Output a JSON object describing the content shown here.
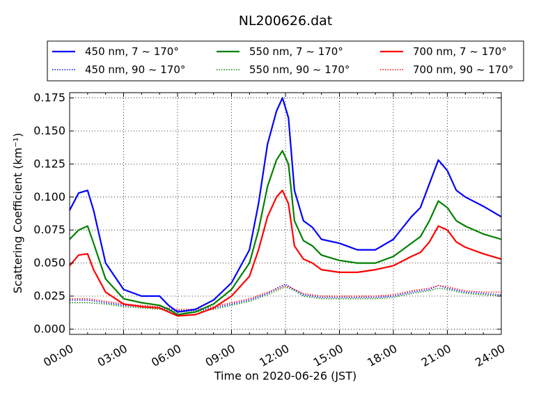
{
  "chart_data": {
    "type": "line",
    "title": "NL200626.dat",
    "xlabel": "Time on 2020-06-26 (JST)",
    "ylabel": "Scattering Coefficient (km⁻¹)",
    "xlim": [
      "00:00",
      "24:00"
    ],
    "ylim": [
      -0.004,
      0.179
    ],
    "xticks": [
      "00:00",
      "03:00",
      "06:00",
      "09:00",
      "12:00",
      "15:00",
      "18:00",
      "21:00",
      "24:00"
    ],
    "yticks": [
      "0.000",
      "0.025",
      "0.050",
      "0.075",
      "0.100",
      "0.125",
      "0.150",
      "0.175"
    ],
    "grid": true,
    "legend_placement": "top, above plot, 3 columns",
    "colors": {
      "blue": "#0000ff",
      "green": "#008000",
      "red": "#ff0000"
    },
    "series": [
      {
        "name": "450 nm, 7 ~ 170°",
        "color": "#0000ff",
        "style": "solid",
        "x": [
          "00:00",
          "00:30",
          "01:00",
          "01:20",
          "02:00",
          "03:00",
          "04:00",
          "05:00",
          "05:30",
          "06:00",
          "07:00",
          "08:00",
          "09:00",
          "10:00",
          "10:30",
          "11:00",
          "11:30",
          "11:50",
          "12:10",
          "12:30",
          "13:00",
          "13:30",
          "14:00",
          "15:00",
          "16:00",
          "17:00",
          "18:00",
          "19:00",
          "19:30",
          "20:00",
          "20:30",
          "21:00",
          "21:30",
          "22:00",
          "23:00",
          "24:00"
        ],
        "y": [
          0.09,
          0.103,
          0.105,
          0.09,
          0.05,
          0.03,
          0.025,
          0.025,
          0.018,
          0.013,
          0.015,
          0.022,
          0.035,
          0.06,
          0.095,
          0.14,
          0.165,
          0.175,
          0.16,
          0.105,
          0.082,
          0.077,
          0.068,
          0.065,
          0.06,
          0.06,
          0.068,
          0.085,
          0.092,
          0.11,
          0.128,
          0.12,
          0.105,
          0.1,
          0.093,
          0.085
        ]
      },
      {
        "name": "550 nm, 7 ~ 170°",
        "color": "#008000",
        "style": "solid",
        "x": [
          "00:00",
          "00:30",
          "01:00",
          "01:20",
          "02:00",
          "03:00",
          "04:00",
          "05:00",
          "05:30",
          "06:00",
          "07:00",
          "08:00",
          "09:00",
          "10:00",
          "10:30",
          "11:00",
          "11:30",
          "11:50",
          "12:10",
          "12:30",
          "13:00",
          "13:30",
          "14:00",
          "15:00",
          "16:00",
          "17:00",
          "18:00",
          "19:00",
          "19:30",
          "20:00",
          "20:30",
          "21:00",
          "21:30",
          "22:00",
          "23:00",
          "24:00"
        ],
        "y": [
          0.068,
          0.075,
          0.078,
          0.065,
          0.038,
          0.023,
          0.02,
          0.018,
          0.015,
          0.011,
          0.013,
          0.019,
          0.03,
          0.05,
          0.075,
          0.108,
          0.128,
          0.135,
          0.125,
          0.082,
          0.067,
          0.063,
          0.056,
          0.052,
          0.05,
          0.05,
          0.055,
          0.065,
          0.07,
          0.082,
          0.097,
          0.092,
          0.082,
          0.078,
          0.072,
          0.068
        ]
      },
      {
        "name": "700 nm, 7 ~ 170°",
        "color": "#ff0000",
        "style": "solid",
        "x": [
          "00:00",
          "00:30",
          "01:00",
          "01:20",
          "02:00",
          "03:00",
          "04:00",
          "05:00",
          "05:30",
          "06:00",
          "07:00",
          "08:00",
          "09:00",
          "10:00",
          "10:30",
          "11:00",
          "11:30",
          "11:50",
          "12:10",
          "12:30",
          "13:00",
          "13:30",
          "14:00",
          "15:00",
          "16:00",
          "17:00",
          "18:00",
          "19:00",
          "19:30",
          "20:00",
          "20:30",
          "21:00",
          "21:30",
          "22:00",
          "23:00",
          "24:00"
        ],
        "y": [
          0.048,
          0.056,
          0.057,
          0.045,
          0.028,
          0.019,
          0.017,
          0.016,
          0.013,
          0.01,
          0.011,
          0.016,
          0.025,
          0.04,
          0.06,
          0.085,
          0.1,
          0.105,
          0.095,
          0.063,
          0.053,
          0.05,
          0.045,
          0.043,
          0.043,
          0.045,
          0.048,
          0.055,
          0.058,
          0.066,
          0.078,
          0.075,
          0.066,
          0.062,
          0.057,
          0.053
        ]
      },
      {
        "name": "450 nm, 90 ~ 170°",
        "color": "#0000ff",
        "style": "dotted",
        "x": [
          "00:00",
          "01:00",
          "02:00",
          "03:00",
          "04:00",
          "05:00",
          "06:00",
          "07:00",
          "08:00",
          "09:00",
          "10:00",
          "11:00",
          "11:30",
          "12:00",
          "12:30",
          "13:00",
          "14:00",
          "15:00",
          "16:00",
          "17:00",
          "18:00",
          "19:00",
          "20:00",
          "20:30",
          "21:00",
          "22:00",
          "23:00",
          "24:00"
        ],
        "y": [
          0.022,
          0.022,
          0.02,
          0.018,
          0.017,
          0.016,
          0.014,
          0.014,
          0.016,
          0.019,
          0.022,
          0.027,
          0.031,
          0.034,
          0.03,
          0.026,
          0.024,
          0.024,
          0.024,
          0.024,
          0.025,
          0.028,
          0.03,
          0.033,
          0.031,
          0.028,
          0.027,
          0.026
        ]
      },
      {
        "name": "550 nm, 90 ~ 170°",
        "color": "#008000",
        "style": "dotted",
        "x": [
          "00:00",
          "01:00",
          "02:00",
          "03:00",
          "04:00",
          "05:00",
          "06:00",
          "07:00",
          "08:00",
          "09:00",
          "10:00",
          "11:00",
          "11:30",
          "12:00",
          "12:30",
          "13:00",
          "14:00",
          "15:00",
          "16:00",
          "17:00",
          "18:00",
          "19:00",
          "20:00",
          "20:30",
          "21:00",
          "22:00",
          "23:00",
          "24:00"
        ],
        "y": [
          0.02,
          0.02,
          0.019,
          0.017,
          0.016,
          0.015,
          0.013,
          0.013,
          0.015,
          0.018,
          0.021,
          0.026,
          0.029,
          0.032,
          0.029,
          0.025,
          0.023,
          0.023,
          0.023,
          0.023,
          0.024,
          0.027,
          0.029,
          0.031,
          0.03,
          0.027,
          0.026,
          0.025
        ]
      },
      {
        "name": "700 nm, 90 ~ 170°",
        "color": "#ff0000",
        "style": "dotted",
        "x": [
          "00:00",
          "01:00",
          "02:00",
          "03:00",
          "04:00",
          "05:00",
          "06:00",
          "07:00",
          "08:00",
          "09:00",
          "10:00",
          "11:00",
          "11:30",
          "12:00",
          "12:30",
          "13:00",
          "14:00",
          "15:00",
          "16:00",
          "17:00",
          "18:00",
          "19:00",
          "20:00",
          "20:30",
          "21:00",
          "22:00",
          "23:00",
          "24:00"
        ],
        "y": [
          0.023,
          0.023,
          0.021,
          0.019,
          0.018,
          0.017,
          0.015,
          0.015,
          0.017,
          0.02,
          0.023,
          0.028,
          0.03,
          0.033,
          0.03,
          0.027,
          0.025,
          0.025,
          0.025,
          0.025,
          0.026,
          0.029,
          0.031,
          0.033,
          0.032,
          0.029,
          0.028,
          0.028
        ]
      }
    ]
  }
}
